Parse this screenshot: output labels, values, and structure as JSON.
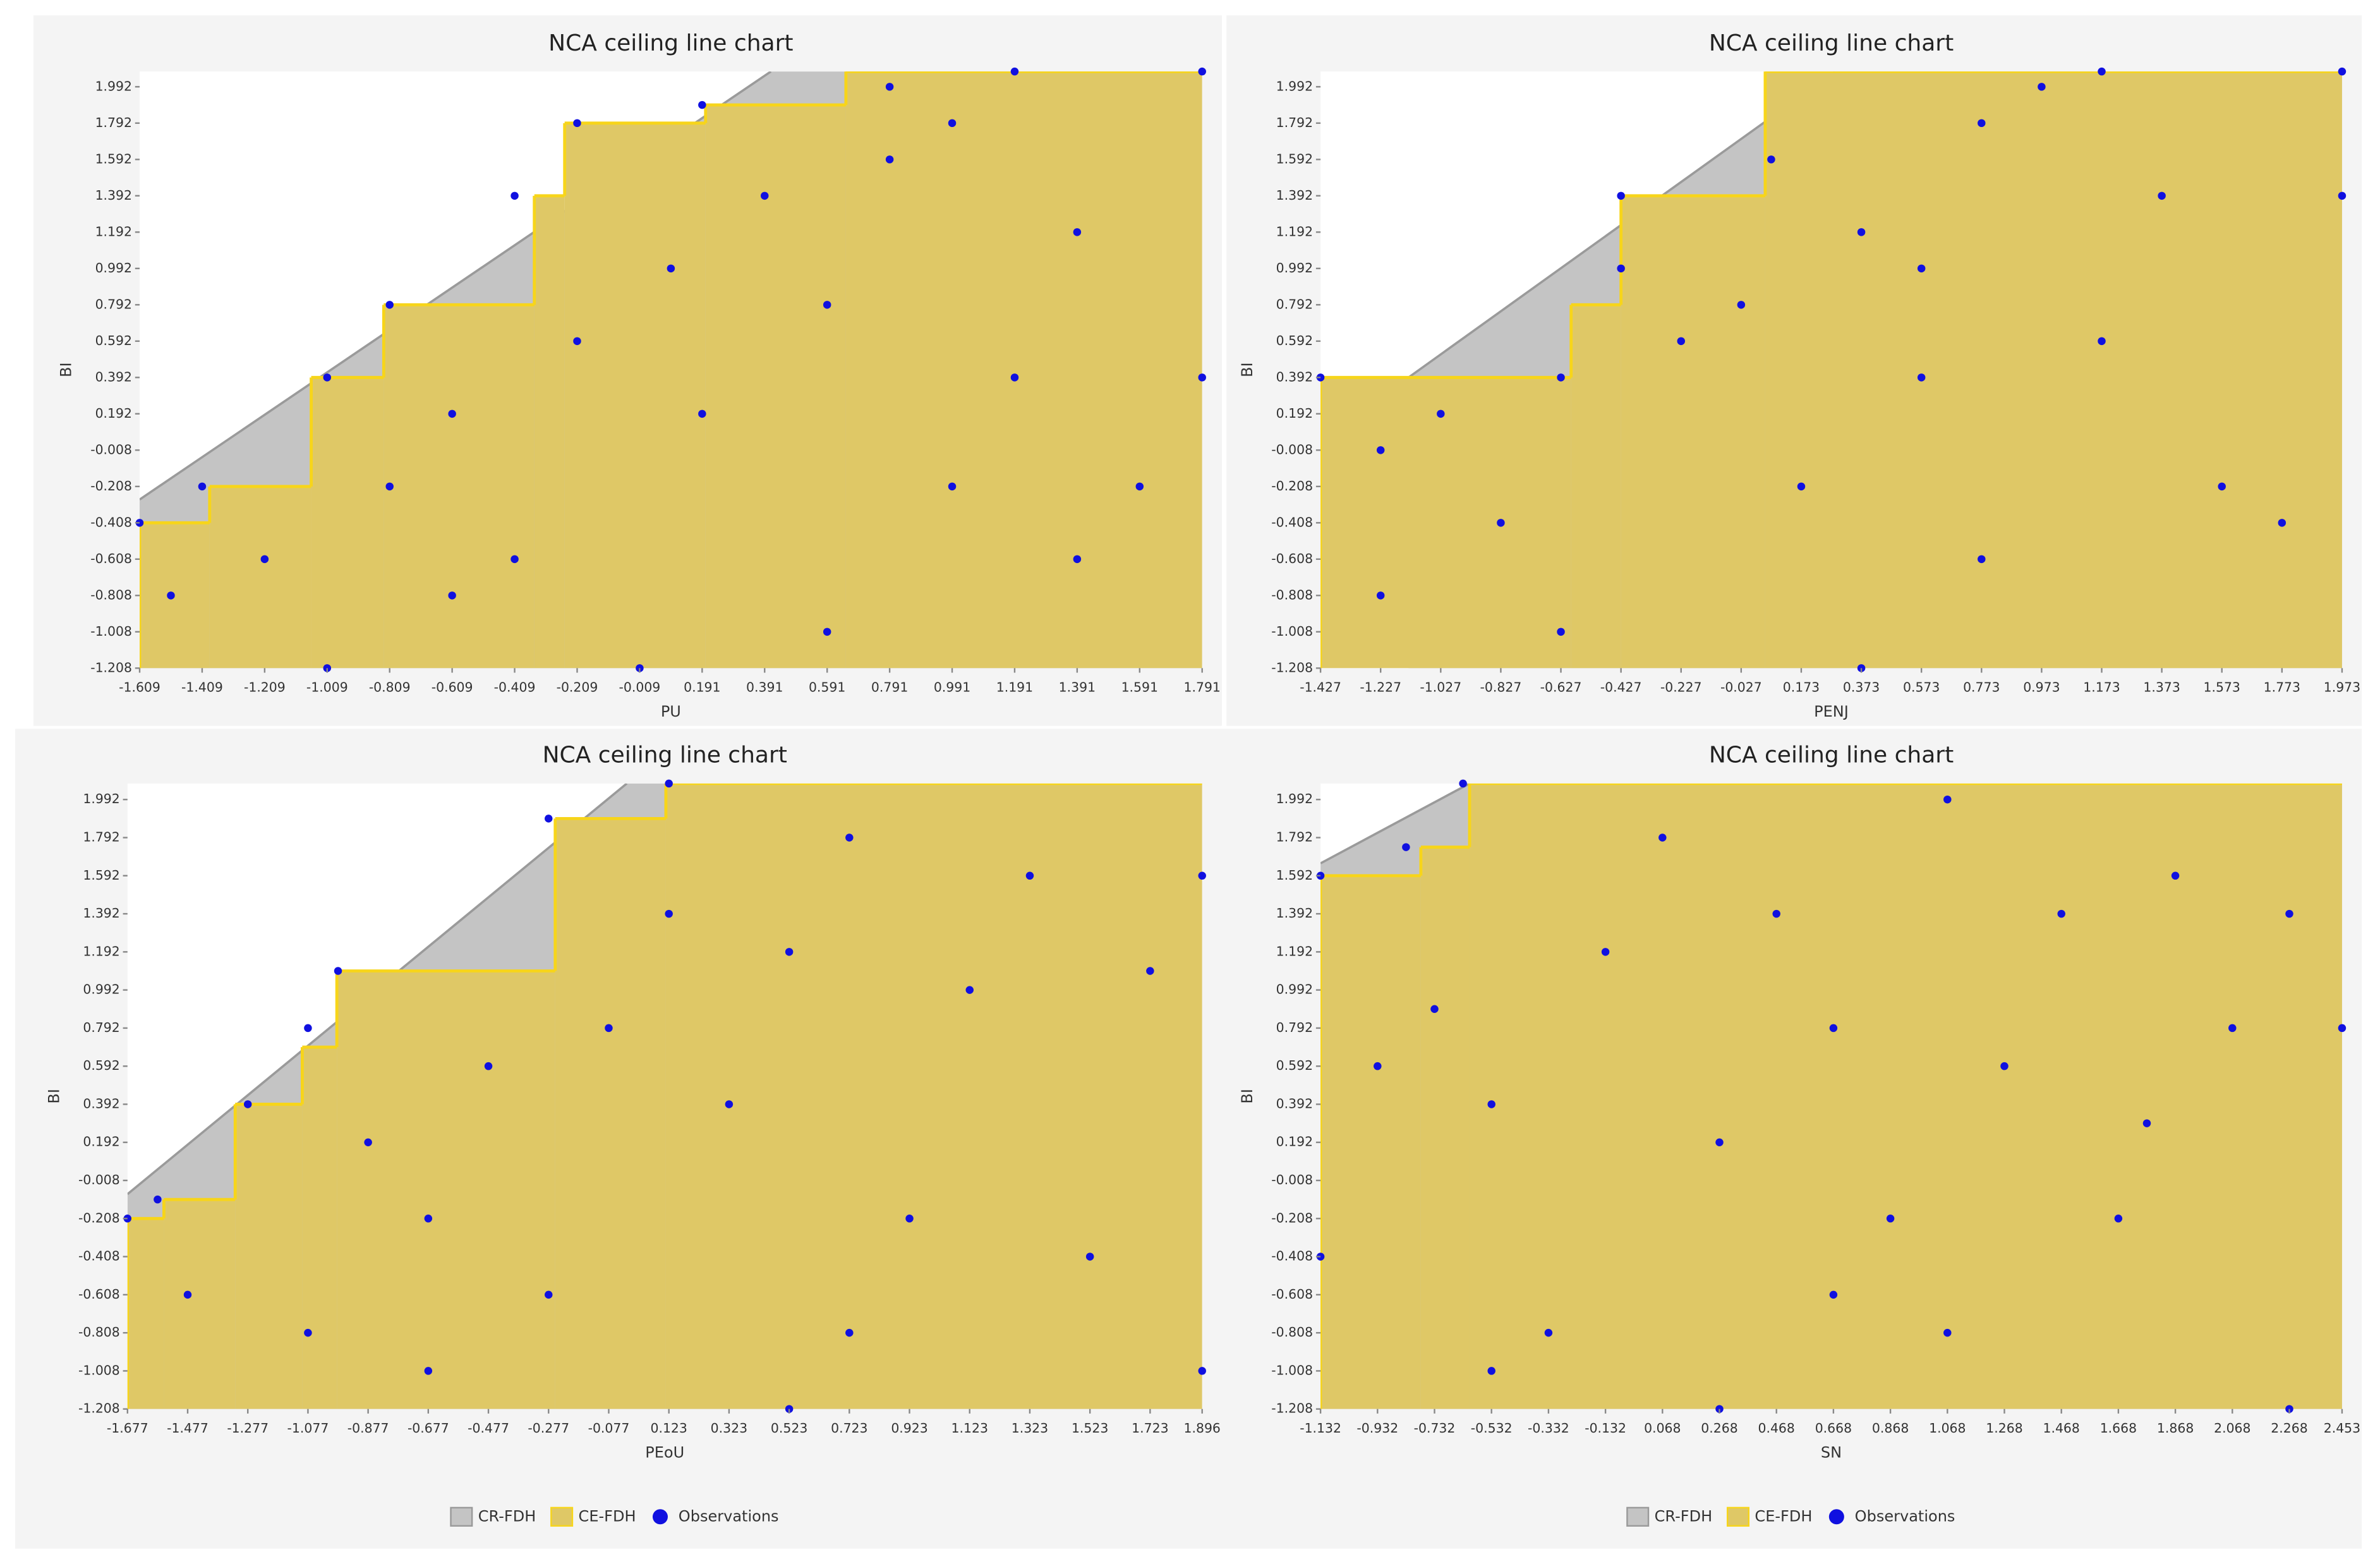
{
  "chart_data": [
    {
      "type": "nca",
      "title": "NCA ceiling line chart",
      "xlabel": "PU",
      "ylabel": "BI",
      "xlim": [
        -1.609,
        1.791
      ],
      "ylim": [
        -1.208,
        2.076
      ],
      "xticks": [
        -1.609,
        -1.409,
        -1.209,
        -1.009,
        -0.809,
        -0.609,
        -0.409,
        -0.209,
        -0.009,
        0.191,
        0.391,
        0.591,
        0.791,
        0.991,
        1.191,
        1.391,
        1.591,
        1.791
      ],
      "yticks": [
        -1.208,
        -1.008,
        -0.808,
        -0.608,
        -0.408,
        -0.208,
        -0.008,
        0.192,
        0.392,
        0.592,
        0.792,
        0.992,
        1.192,
        1.392,
        1.592,
        1.792,
        1.992
      ],
      "series": [
        {
          "name": "CR-FDH",
          "color": "#c4c4c4",
          "x": [
            -1.609,
            0.411
          ],
          "y": [
            -0.28,
            2.076
          ]
        },
        {
          "name": "CE-FDH",
          "color": "#dfc866",
          "line_color": "#f7d51a",
          "x": [
            -1.609,
            -1.385,
            -1.06,
            -0.828,
            -0.346,
            -0.249,
            0.202,
            0.651
          ],
          "y": [
            -0.408,
            -0.208,
            0.392,
            0.792,
            1.392,
            1.792,
            1.892,
            2.076
          ]
        },
        {
          "name": "Observations",
          "color": "#1010e0",
          "x": [
            -1.609,
            -1.409,
            -1.009,
            -0.809,
            -0.409,
            -0.209,
            0.191,
            0.791,
            1.191,
            1.791,
            -1.509,
            -1.209,
            -1.009,
            -0.809,
            -0.609,
            -0.409,
            -0.209,
            0.091,
            0.391,
            0.591,
            0.791,
            0.991,
            1.191,
            1.391,
            1.591,
            1.791,
            0.591,
            -0.009,
            0.191,
            -0.609,
            1.391,
            0.991
          ],
          "y": [
            -0.408,
            -0.208,
            0.392,
            0.792,
            1.392,
            1.792,
            1.892,
            1.992,
            2.076,
            2.076,
            -0.808,
            -0.608,
            -1.208,
            -0.208,
            0.192,
            -0.608,
            0.592,
            0.992,
            1.392,
            0.792,
            1.592,
            -0.208,
            0.392,
            1.192,
            -0.208,
            0.392,
            -1.008,
            -1.208,
            0.192,
            -0.808,
            -0.608,
            1.792
          ]
        }
      ]
    },
    {
      "type": "nca",
      "title": "NCA ceiling line chart",
      "xlabel": "PENJ",
      "ylabel": "BI",
      "xlim": [
        -1.427,
        1.973
      ],
      "ylim": [
        -1.208,
        2.076
      ],
      "xticks": [
        -1.427,
        -1.227,
        -1.027,
        -0.827,
        -0.627,
        -0.427,
        -0.227,
        -0.027,
        0.173,
        0.373,
        0.573,
        0.773,
        0.973,
        1.173,
        1.373,
        1.573,
        1.773,
        1.973
      ],
      "yticks": [
        -1.208,
        -1.008,
        -0.808,
        -0.608,
        -0.408,
        -0.208,
        -0.008,
        0.192,
        0.392,
        0.592,
        0.792,
        0.992,
        1.192,
        1.392,
        1.592,
        1.792,
        1.992
      ],
      "series": [
        {
          "name": "CR-FDH",
          "color": "#c4c4c4",
          "x": [
            -1.134,
            0.286
          ],
          "y": [
            0.392,
            2.076
          ]
        },
        {
          "name": "CE-FDH",
          "color": "#dfc866",
          "line_color": "#f7d51a",
          "x": [
            -1.427,
            -0.593,
            -0.427,
            0.053
          ],
          "y": [
            0.392,
            0.792,
            1.392,
            2.076
          ]
        },
        {
          "name": "Observations",
          "color": "#1010e0",
          "x": [
            -1.427,
            -1.227,
            -1.027,
            -0.827,
            -0.627,
            -0.427,
            -0.427,
            -0.227,
            -0.027,
            0.073,
            0.173,
            0.373,
            0.573,
            0.773,
            0.973,
            1.173,
            1.373,
            1.573,
            1.773,
            1.973,
            0.373,
            -0.627,
            0.773,
            1.173,
            -1.227,
            0.573,
            1.973
          ],
          "y": [
            0.392,
            -0.808,
            0.192,
            -0.408,
            0.392,
            1.392,
            0.992,
            0.592,
            0.792,
            1.592,
            -0.208,
            1.192,
            0.992,
            1.792,
            1.992,
            2.076,
            1.392,
            -0.208,
            -0.408,
            2.076,
            -1.208,
            -1.008,
            -0.608,
            0.592,
            -0.008,
            0.392,
            1.392
          ]
        }
      ]
    },
    {
      "type": "nca",
      "title": "NCA ceiling line chart",
      "xlabel": "PEoU",
      "ylabel": "BI",
      "xlim": [
        -1.677,
        1.896
      ],
      "ylim": [
        -1.208,
        2.076
      ],
      "xticks": [
        -1.677,
        -1.477,
        -1.277,
        -1.077,
        -0.877,
        -0.677,
        -0.477,
        -0.277,
        -0.077,
        0.123,
        0.323,
        0.523,
        0.723,
        0.923,
        1.123,
        1.323,
        1.523,
        1.723,
        1.896
      ],
      "yticks": [
        -1.208,
        -1.008,
        -0.808,
        -0.608,
        -0.408,
        -0.208,
        -0.008,
        0.192,
        0.392,
        0.592,
        0.792,
        0.992,
        1.192,
        1.392,
        1.592,
        1.792,
        1.992
      ],
      "series": [
        {
          "name": "CR-FDH",
          "color": "#c4c4c4",
          "x": [
            -1.677,
            -0.017
          ],
          "y": [
            -0.08,
            2.076
          ]
        },
        {
          "name": "CE-FDH",
          "color": "#dfc866",
          "line_color": "#f7d51a",
          "x": [
            -1.677,
            -1.556,
            -1.319,
            -1.096,
            -0.981,
            -0.255,
            0.113
          ],
          "y": [
            -0.208,
            -0.108,
            0.392,
            0.692,
            1.092,
            1.892,
            2.076
          ]
        },
        {
          "name": "Observations",
          "color": "#1010e0",
          "x": [
            -1.677,
            -1.577,
            -1.277,
            -1.077,
            -0.977,
            -0.277,
            0.123,
            -1.477,
            -1.077,
            -0.877,
            -0.677,
            -0.477,
            -0.277,
            -0.077,
            0.123,
            0.323,
            0.523,
            0.723,
            0.923,
            1.123,
            1.323,
            1.523,
            1.723,
            1.896,
            1.896,
            0.523,
            -0.677,
            0.723
          ],
          "y": [
            -0.208,
            -0.108,
            0.392,
            0.792,
            1.092,
            1.892,
            2.076,
            -0.608,
            -0.808,
            0.192,
            -0.208,
            0.592,
            -0.608,
            0.792,
            1.392,
            0.392,
            1.192,
            1.792,
            -0.208,
            0.992,
            1.592,
            -0.408,
            1.092,
            1.592,
            -1.008,
            -1.208,
            -1.008,
            -0.808
          ]
        }
      ]
    },
    {
      "type": "nca",
      "title": "NCA ceiling line chart",
      "xlabel": "SN",
      "ylabel": "BI",
      "xlim": [
        -1.132,
        2.453
      ],
      "ylim": [
        -1.208,
        2.076
      ],
      "xticks": [
        -1.132,
        -0.932,
        -0.732,
        -0.532,
        -0.332,
        -0.132,
        0.068,
        0.268,
        0.468,
        0.668,
        0.868,
        1.068,
        1.268,
        1.468,
        1.668,
        1.868,
        2.068,
        2.268,
        2.453
      ],
      "yticks": [
        -1.208,
        -1.008,
        -0.808,
        -0.608,
        -0.408,
        -0.208,
        -0.008,
        0.192,
        0.392,
        0.592,
        0.792,
        0.992,
        1.192,
        1.392,
        1.592,
        1.792,
        1.992
      ],
      "series": [
        {
          "name": "CR-FDH",
          "color": "#c4c4c4",
          "x": [
            -1.132,
            -0.609
          ],
          "y": [
            1.657,
            2.076
          ]
        },
        {
          "name": "CE-FDH",
          "color": "#dfc866",
          "line_color": "#f7d51a",
          "x": [
            -1.132,
            -0.78,
            -0.609
          ],
          "y": [
            1.592,
            1.742,
            2.076
          ]
        },
        {
          "name": "Observations",
          "color": "#1010e0",
          "x": [
            -1.132,
            -0.832,
            -0.632,
            -1.132,
            -0.932,
            -0.732,
            -0.532,
            -0.332,
            -0.132,
            0.068,
            0.268,
            0.468,
            0.668,
            0.868,
            1.068,
            1.268,
            1.468,
            1.668,
            1.868,
            2.068,
            2.268,
            2.453,
            0.268,
            -0.532,
            1.068,
            0.668,
            2.268,
            1.768
          ],
          "y": [
            1.592,
            1.742,
            2.076,
            -0.408,
            0.592,
            0.892,
            0.392,
            -0.808,
            1.192,
            1.792,
            0.192,
            1.392,
            0.792,
            -0.208,
            1.992,
            0.592,
            1.392,
            -0.208,
            1.592,
            0.792,
            1.392,
            0.792,
            -1.208,
            -1.008,
            -0.808,
            -0.608,
            -1.208,
            0.292
          ]
        }
      ]
    }
  ]
}
